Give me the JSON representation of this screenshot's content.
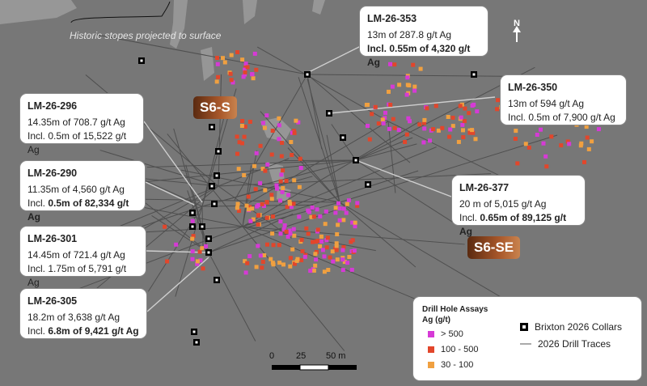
{
  "map": {
    "stopes_label": "Historic stopes projected to surface",
    "north_label": "N",
    "zones": [
      {
        "id": "s6-s",
        "label": "S6-S"
      },
      {
        "id": "s6-se",
        "label": "S6-SE"
      }
    ],
    "callouts": [
      {
        "id": "lm-26-353",
        "title": "LM-26-353",
        "line1": "13m of 287.8 g/t Ag",
        "incl_prefix": "Incl. ",
        "incl_bold": "0.55m of 4,320 g/t Ag",
        "bold_all": true
      },
      {
        "id": "lm-26-350",
        "title": "LM-26-350",
        "line1": "13m of 594 g/t Ag",
        "incl_prefix": "Incl. 0.5m of 7,900 g/t Ag",
        "incl_bold": "",
        "bold_all": false
      },
      {
        "id": "lm-26-296",
        "title": "LM-26-296",
        "line1": "14.35m of 708.7 g/t Ag",
        "incl_prefix": "Incl. 0.5m of 15,522 g/t Ag",
        "incl_bold": "",
        "bold_all": false
      },
      {
        "id": "lm-26-290",
        "title": "LM-26-290",
        "line1": "11.35m of 4,560 g/t Ag",
        "incl_prefix": "Incl. ",
        "incl_bold": "0.5m of 82,334 g/t Ag",
        "bold_all": true
      },
      {
        "id": "lm-26-377",
        "title": "LM-26-377",
        "line1": "20 m of 5,015 g/t Ag",
        "incl_prefix": "Incl. ",
        "incl_bold": "0.65m of 89,125 g/t Ag",
        "bold_all": true
      },
      {
        "id": "lm-26-301",
        "title": "LM-26-301",
        "line1": "14.45m of 721.4 g/t Ag",
        "incl_prefix": "Incl. 1.75m of 5,791 g/t Ag",
        "incl_bold": "",
        "bold_all": false
      },
      {
        "id": "lm-26-305",
        "title": "LM-26-305",
        "line1": "18.2m of 3,638 g/t Ag",
        "incl_prefix": "Incl. ",
        "incl_bold": "6.8m of 9,421 g/t Ag",
        "bold_all": true
      }
    ],
    "scale": {
      "labels": [
        "0",
        "25",
        "50 m"
      ]
    }
  },
  "legend": {
    "title_line1": "Drill Hole Assays",
    "title_line2": "Ag (g/t)",
    "assay_classes": [
      {
        "label": "> 500",
        "color": "#d63ad6"
      },
      {
        "label": "100 - 500",
        "color": "#e2462b"
      },
      {
        "label": "30 - 100",
        "color": "#f0a040"
      }
    ],
    "collars_label": "Brixton 2026 Collars",
    "traces_label": "2026 Drill Traces"
  },
  "colors": {
    "background": "#777777",
    "magenta": "#d63ad6",
    "red": "#e2462b",
    "orange": "#f0a040",
    "trace": "#4f4f4f"
  }
}
